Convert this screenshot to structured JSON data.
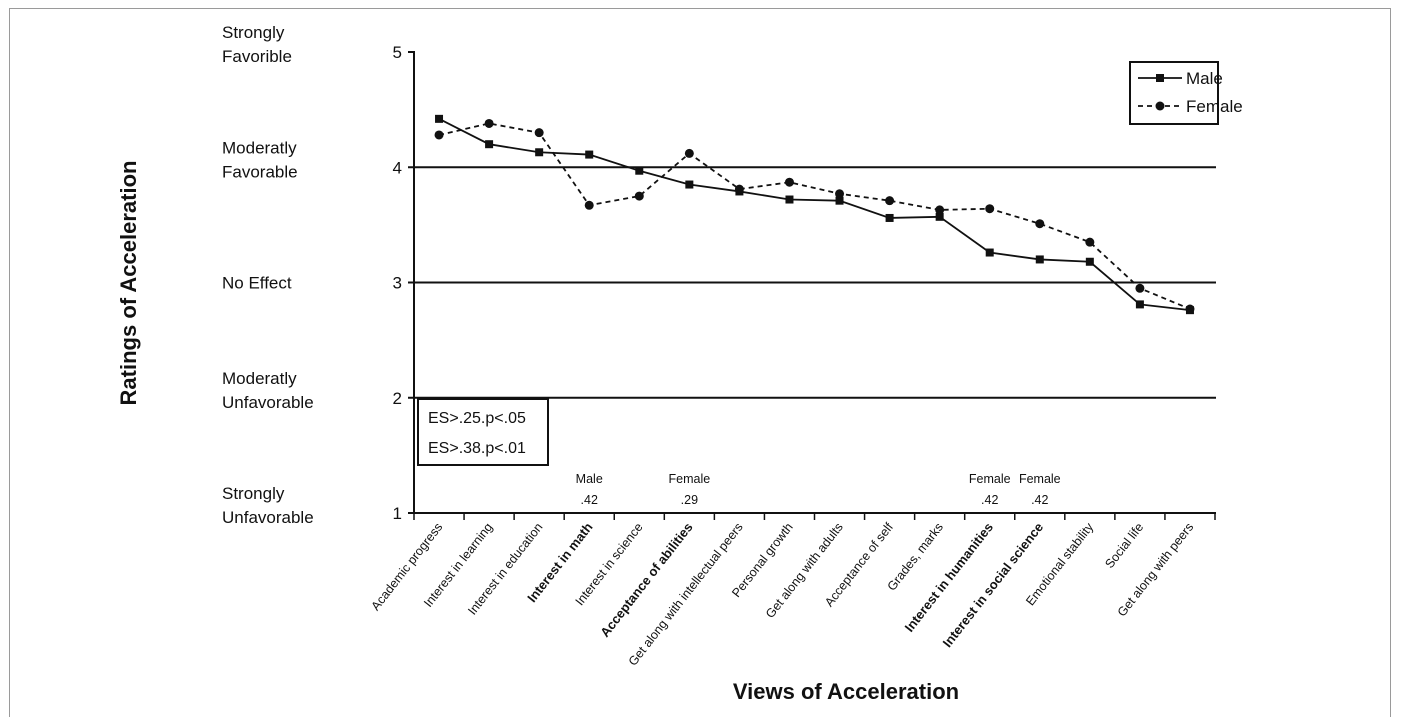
{
  "chart_data": {
    "type": "line",
    "xlabel": "Views of Acceleration",
    "ylabel": "Ratings of Acceleration",
    "ylim": [
      1,
      5
    ],
    "yticks": [
      1,
      2,
      3,
      4,
      5
    ],
    "gridlines": [
      2,
      3,
      4
    ],
    "y_descriptors": [
      {
        "value": 5,
        "lines": [
          "Strongly",
          "Favorible"
        ]
      },
      {
        "value": 4,
        "lines": [
          "Moderatly",
          "Favorable"
        ]
      },
      {
        "value": 3,
        "lines": [
          "No Effect"
        ]
      },
      {
        "value": 2,
        "lines": [
          "Moderatly",
          "Unfavorable"
        ]
      },
      {
        "value": 1,
        "lines": [
          "Strongly",
          "Unfavorable"
        ]
      }
    ],
    "categories": [
      "Academic progress",
      "Interest in learning",
      "Interest in education",
      "Interest in math",
      "Interest in science",
      "Acceptance of abilities",
      "Get along with intellectual peers",
      "Personal growth",
      "Get along with adults",
      "Acceptance of self",
      "Grades, marks",
      "Interest in humanities",
      "Interest in social science",
      "Emotional stability",
      "Social life",
      "Get along with peers"
    ],
    "bold_categories": [
      3,
      5,
      11,
      12
    ],
    "series": [
      {
        "name": "Male",
        "line": "solid",
        "marker": "square",
        "values": [
          4.42,
          4.2,
          4.13,
          4.11,
          3.97,
          3.85,
          3.79,
          3.72,
          3.71,
          3.56,
          3.57,
          3.26,
          3.2,
          3.18,
          2.81,
          2.76
        ]
      },
      {
        "name": "Female",
        "line": "dashed",
        "marker": "circle",
        "values": [
          4.28,
          4.38,
          4.3,
          3.67,
          3.75,
          4.12,
          3.81,
          3.87,
          3.77,
          3.71,
          3.63,
          3.64,
          3.51,
          3.35,
          2.95,
          2.77
        ]
      }
    ],
    "annotations": [
      {
        "category_index": 3,
        "group": "Male",
        "value": ".42"
      },
      {
        "category_index": 5,
        "group": "Female",
        "value": ".29"
      },
      {
        "category_index": 11,
        "group": "Female",
        "value": ".42"
      },
      {
        "category_index": 12,
        "group": "Female",
        "value": ".42"
      }
    ],
    "significance_key": [
      "ES>.25.p<.05",
      "ES>.38.p<.01"
    ],
    "legend_position": "top-right"
  }
}
